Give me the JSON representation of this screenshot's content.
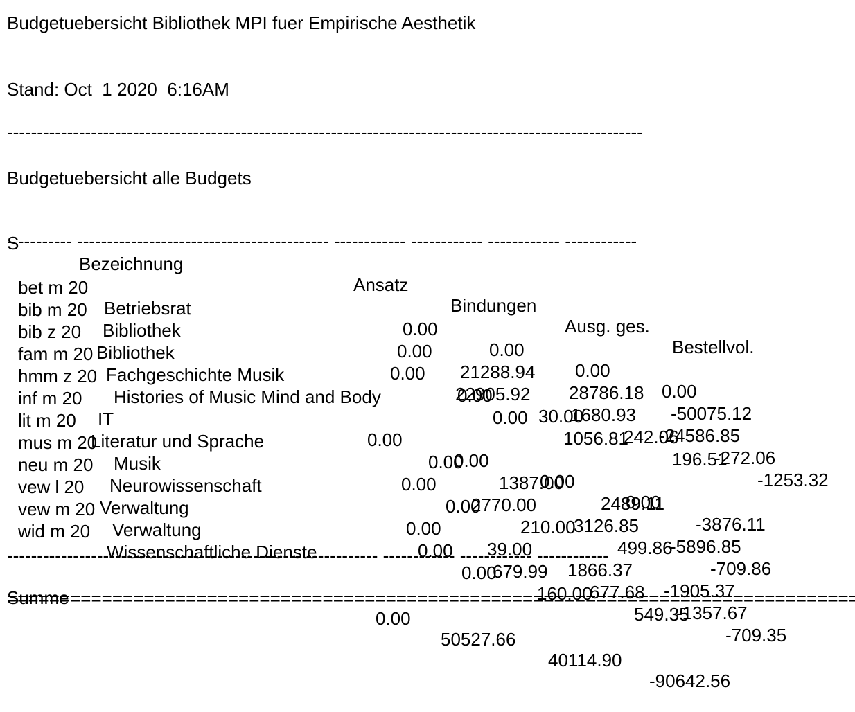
{
  "title": "Budgetuebersicht Bibliothek MPI fuer Empirische Aesthetik",
  "stand_label": "Stand:",
  "stand_value": "Oct  1 2020  6:16AM",
  "separator_top": "----------------------------------------------------------------------------------------------------------",
  "section_title": "Budgetuebersicht alle Budgets",
  "columns": {
    "s": "S",
    "bezeichnung": "Bezeichnung",
    "ansatz": "Ansatz",
    "bindungen": "Bindungen",
    "ausg": "Ausg. ges.",
    "bestellvol": "Bestellvol."
  },
  "header_rule": "- --------- ------------------------------------------ ------------ ------------ ------------ ------------",
  "rows": [
    {
      "code": "bet m 20",
      "name": "Betriebsrat",
      "ansatz": "0.00",
      "bindungen": "0.00",
      "ausg": "0.00",
      "bestellvol": "0.00"
    },
    {
      "code": "bib m 20",
      "name": "Bibliothek",
      "ansatz": "0.00",
      "bindungen": "21288.94",
      "ausg": "28786.18",
      "bestellvol": "-50075.12"
    },
    {
      "code": "bib z 20",
      "name": "Bibliothek",
      "ansatz": "0.00",
      "bindungen": "22905.92",
      "ausg": "1680.93",
      "bestellvol": "-24586.85"
    },
    {
      "code": "fam m 20",
      "name": "Fachgeschichte Musik",
      "ansatz": "0.00",
      "bindungen": "30.00",
      "ausg": "242.06",
      "bestellvol": "-272.06"
    },
    {
      "code": "hmm z 20",
      "name": "Histories of Music Mind and Body",
      "ansatz": "0.00",
      "bindungen": "1056.81",
      "ausg": "196.51",
      "bestellvol": "-1253.32"
    },
    {
      "code": "inf m 20",
      "name": "IT",
      "ansatz": "0.00",
      "bindungen": "0.00",
      "ausg": "0.00",
      "bestellvol": "0.00"
    },
    {
      "code": "lit m 20",
      "name": "Literatur und Sprache",
      "ansatz": "0.00",
      "bindungen": "1387.00",
      "ausg": "2489.11",
      "bestellvol": "-3876.11"
    },
    {
      "code": "mus m 20",
      "name": "Musik",
      "ansatz": "0.00",
      "bindungen": "2770.00",
      "ausg": "3126.85",
      "bestellvol": "-5896.85"
    },
    {
      "code": "neu m 20",
      "name": "Neurowissenschaft",
      "ansatz": "0.00",
      "bindungen": "210.00",
      "ausg": "499.86",
      "bestellvol": "-709.86"
    },
    {
      "code": "vew l 20",
      "name": "Verwaltung",
      "ansatz": "0.00",
      "bindungen": "39.00",
      "ausg": "1866.37",
      "bestellvol": "-1905.37"
    },
    {
      "code": "vew m 20",
      "name": "Verwaltung",
      "ansatz": "0.00",
      "bindungen": "679.99",
      "ausg": "677.68",
      "bestellvol": "-1357.67"
    },
    {
      "code": "wid m 20",
      "name": "Wissenschaftliche Dienste",
      "ansatz": "0.00",
      "bindungen": "160.00",
      "ausg": "549.35",
      "bestellvol": "-709.35"
    }
  ],
  "footer_rule": "------------------------------------------------- ------------ ------------ ------------ ------------",
  "summe": {
    "label": "Summe",
    "ansatz": "0.00",
    "bindungen": "50527.66",
    "ausg": "40114.90",
    "bestellvol": "-90642.56"
  },
  "double_rule": "==========================================================================================="
}
